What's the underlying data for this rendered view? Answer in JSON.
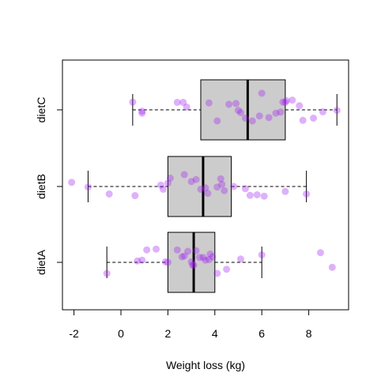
{
  "chart_data": {
    "type": "boxplot",
    "title": "",
    "xlabel": "Weight loss (kg)",
    "ylabel": "",
    "xlim": [
      -2.5,
      9.6
    ],
    "x_ticks": [
      -2,
      0,
      2,
      4,
      6,
      8
    ],
    "x_tick_labels": [
      "-2",
      "0",
      "2",
      "4",
      "6",
      "8"
    ],
    "categories": [
      "dietA",
      "dietB",
      "dietC"
    ],
    "box_fill": "#cccccc",
    "point_color": "#a020f0",
    "point_alpha": 0.35,
    "grid": false,
    "series": [
      {
        "category": "dietA",
        "whisker_low": -0.6,
        "q1": 2.0,
        "median": 3.1,
        "q3": 4.0,
        "whisker_high": 6.0,
        "points": [
          [
            -0.6,
            -0.4
          ],
          [
            0.7,
            0.05
          ],
          [
            0.9,
            0.08
          ],
          [
            1.1,
            0.45
          ],
          [
            1.5,
            0.48
          ],
          [
            1.9,
            0.02
          ],
          [
            2.0,
            0.0
          ],
          [
            2.4,
            0.45
          ],
          [
            2.6,
            0.2
          ],
          [
            2.7,
            0.23
          ],
          [
            2.85,
            0.4
          ],
          [
            3.0,
            0.02
          ],
          [
            3.05,
            -0.1
          ],
          [
            3.1,
            -0.1
          ],
          [
            3.2,
            0.42
          ],
          [
            3.35,
            0.18
          ],
          [
            3.5,
            0.18
          ],
          [
            3.6,
            0.08
          ],
          [
            3.75,
            0.1
          ],
          [
            3.8,
            0.3
          ],
          [
            3.9,
            0.2
          ],
          [
            4.1,
            -0.4
          ],
          [
            4.5,
            -0.25
          ],
          [
            5.1,
            0.12
          ],
          [
            6.0,
            0.27
          ],
          [
            8.5,
            0.35
          ],
          [
            9.0,
            -0.18
          ]
        ]
      },
      {
        "category": "dietB",
        "whisker_low": -1.4,
        "q1": 2.0,
        "median": 3.5,
        "q3": 4.7,
        "whisker_high": 7.9,
        "points": [
          [
            -2.1,
            0.15
          ],
          [
            -1.4,
            -0.02
          ],
          [
            -0.5,
            -0.27
          ],
          [
            0.6,
            -0.33
          ],
          [
            1.7,
            0.05
          ],
          [
            1.8,
            -0.1
          ],
          [
            2.0,
            0.12
          ],
          [
            2.1,
            0.3
          ],
          [
            2.7,
            0.43
          ],
          [
            3.0,
            0.18
          ],
          [
            3.2,
            0.25
          ],
          [
            3.4,
            -0.1
          ],
          [
            3.6,
            -0.05
          ],
          [
            3.7,
            -0.25
          ],
          [
            4.1,
            -0.02
          ],
          [
            4.25,
            0.28
          ],
          [
            4.3,
            0.08
          ],
          [
            4.4,
            -0.15
          ],
          [
            4.8,
            0.0
          ],
          [
            5.3,
            -0.08
          ],
          [
            5.5,
            -0.32
          ],
          [
            5.8,
            -0.3
          ],
          [
            6.1,
            -0.35
          ],
          [
            7.0,
            -0.18
          ],
          [
            7.9,
            -0.27
          ]
        ]
      },
      {
        "category": "dietC",
        "whisker_low": 0.5,
        "q1": 3.4,
        "median": 5.4,
        "q3": 7.0,
        "whisker_high": 9.2,
        "points": [
          [
            0.5,
            0.28
          ],
          [
            0.9,
            -0.12
          ],
          [
            0.9,
            -0.05
          ],
          [
            2.4,
            0.27
          ],
          [
            2.65,
            0.27
          ],
          [
            2.8,
            0.1
          ],
          [
            3.75,
            0.25
          ],
          [
            4.1,
            -0.4
          ],
          [
            4.6,
            0.2
          ],
          [
            4.9,
            0.23
          ],
          [
            5.0,
            -0.02
          ],
          [
            5.1,
            -0.1
          ],
          [
            5.3,
            -0.3
          ],
          [
            5.6,
            -0.4
          ],
          [
            5.9,
            -0.22
          ],
          [
            6.0,
            0.6
          ],
          [
            6.3,
            -0.28
          ],
          [
            6.6,
            -0.12
          ],
          [
            6.8,
            -0.08
          ],
          [
            6.9,
            0.28
          ],
          [
            7.0,
            0.27
          ],
          [
            7.05,
            0.33
          ],
          [
            7.3,
            0.35
          ],
          [
            7.6,
            0.15
          ],
          [
            7.75,
            -0.38
          ],
          [
            8.2,
            -0.3
          ],
          [
            8.6,
            -0.07
          ],
          [
            9.2,
            -0.02
          ]
        ]
      }
    ]
  }
}
